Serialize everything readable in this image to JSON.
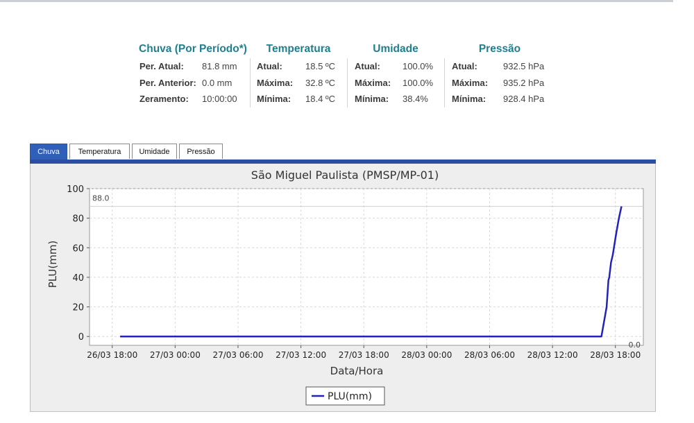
{
  "stats": [
    {
      "title": "Chuva (Por Período*)",
      "rows": [
        {
          "label": "Per. Atual:",
          "value": "81.8 mm"
        },
        {
          "label": "Per. Anterior:",
          "value": "0.0 mm"
        },
        {
          "label": "Zeramento:",
          "value": "10:00:00"
        }
      ]
    },
    {
      "title": "Temperatura",
      "rows": [
        {
          "label": "Atual:",
          "value": "18.5 ºC"
        },
        {
          "label": "Máxima:",
          "value": "32.8 ºC"
        },
        {
          "label": "Mínima:",
          "value": "18.4 ºC"
        }
      ]
    },
    {
      "title": "Umidade",
      "rows": [
        {
          "label": "Atual:",
          "value": "100.0%"
        },
        {
          "label": "Máxima:",
          "value": "100.0%"
        },
        {
          "label": "Mínima:",
          "value": "38.4%"
        }
      ]
    },
    {
      "title": "Pressão",
      "rows": [
        {
          "label": "Atual:",
          "value": "932.5 hPa"
        },
        {
          "label": "Máxima:",
          "value": "935.2 hPa"
        },
        {
          "label": "Mínima:",
          "value": "928.4 hPa"
        }
      ]
    }
  ],
  "tabs": [
    {
      "label": "Chuva",
      "active": true
    },
    {
      "label": "Temperatura",
      "active": false
    },
    {
      "label": "Umidade",
      "active": false
    },
    {
      "label": "Pressão",
      "active": false
    }
  ],
  "chart_data": {
    "type": "line",
    "title": "São Miguel Paulista (PMSP/MP-01)",
    "xlabel": "Data/Hora",
    "ylabel": "PLU(mm)",
    "x_ticks": [
      "26/03 18:00",
      "27/03 00:00",
      "27/03 06:00",
      "27/03 12:00",
      "27/03 18:00",
      "28/03 00:00",
      "28/03 06:00",
      "28/03 12:00",
      "28/03 18:00"
    ],
    "y_ticks": [
      "0",
      "20",
      "40",
      "60",
      "80",
      "100"
    ],
    "xlim": [
      "26/03 15:50",
      "28/03 20:40"
    ],
    "ylim": [
      -6,
      100
    ],
    "grid": true,
    "legend": "bottom-center",
    "max_marker": {
      "label": "88.0",
      "value": 88.0
    },
    "min_marker": {
      "label": "0.0",
      "value": 0.0
    },
    "series": [
      {
        "name": "PLU(mm)",
        "color": "#2222bb",
        "points": [
          {
            "x": "26/03 18:45",
            "y": 0
          },
          {
            "x": "28/03 16:40",
            "y": 0
          },
          {
            "x": "28/03 17:10",
            "y": 20
          },
          {
            "x": "28/03 17:20",
            "y": 38
          },
          {
            "x": "28/03 17:25",
            "y": 40
          },
          {
            "x": "28/03 17:35",
            "y": 50
          },
          {
            "x": "28/03 17:45",
            "y": 55
          },
          {
            "x": "28/03 18:05",
            "y": 70
          },
          {
            "x": "28/03 18:20",
            "y": 80
          },
          {
            "x": "28/03 18:35",
            "y": 88
          }
        ]
      }
    ]
  }
}
